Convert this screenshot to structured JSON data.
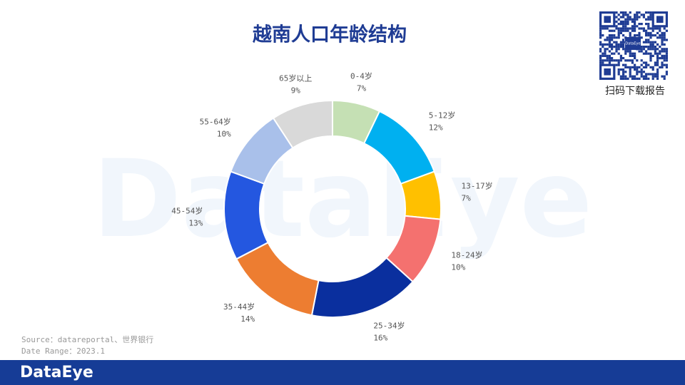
{
  "header": {
    "title": "越南人口年龄结构",
    "qr_label": "扫码下载报告",
    "qr_center": "DataEye"
  },
  "watermark": "DataEye",
  "chart_data": {
    "type": "donut",
    "categories": [
      "0-4岁",
      "5-12岁",
      "13-17岁",
      "18-24岁",
      "25-34岁",
      "35-44岁",
      "45-54岁",
      "55-64岁",
      "65岁以上"
    ],
    "values": [
      7,
      12,
      7,
      10,
      16,
      14,
      13,
      10,
      9
    ],
    "value_labels": [
      "7%",
      "12%",
      "7%",
      "10%",
      "16%",
      "14%",
      "13%",
      "10%",
      "9%"
    ],
    "colors": [
      "#c5e0b4",
      "#00b0f0",
      "#ffc000",
      "#f4716f",
      "#0a2f9e",
      "#ed7d31",
      "#2457e0",
      "#a9c0ea",
      "#d9d9d9"
    ]
  },
  "footer": {
    "source": "Source：datareportal、世界银行",
    "date_range": "Date Range：2023.1",
    "brand": "DataEye"
  }
}
